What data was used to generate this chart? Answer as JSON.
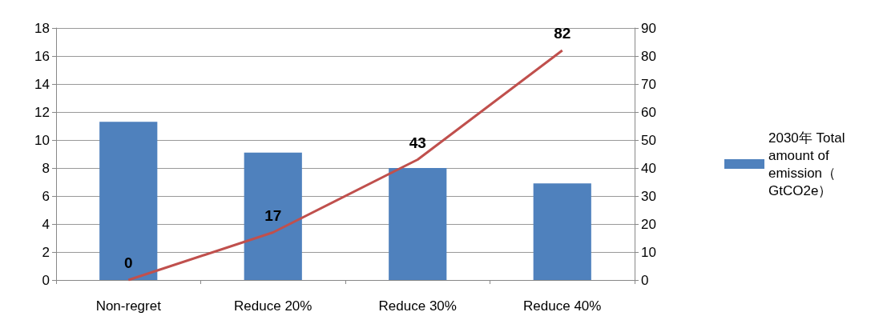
{
  "chart_data": {
    "type": "bar",
    "categories": [
      "Non-regret",
      "Reduce 20%",
      "Reduce 30%",
      "Reduce 40%"
    ],
    "series": [
      {
        "name": "2030年 Total amount of emission（GtCO2e）",
        "color": "#4f81bd",
        "values": [
          11.3,
          9.1,
          8.0,
          6.9
        ]
      },
      {
        "type": "line",
        "axis": "y2",
        "color": "#c0504d",
        "values": [
          0,
          17,
          43,
          82
        ],
        "data_labels": true
      }
    ],
    "ylim": [
      0,
      18
    ],
    "yticks": [
      0,
      2,
      4,
      6,
      8,
      10,
      12,
      14,
      16,
      18
    ],
    "y2lim": [
      0,
      90
    ],
    "y2ticks": [
      0,
      10,
      20,
      30,
      40,
      50,
      60,
      70,
      80,
      90
    ],
    "grid": "y",
    "legend": "right",
    "marker": "none"
  }
}
